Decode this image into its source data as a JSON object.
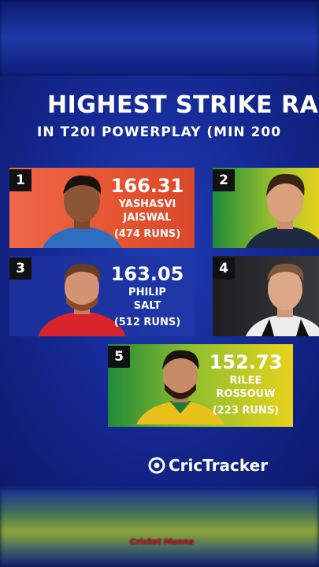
{
  "header": {
    "title": "HIGHEST STRIKE RA",
    "subtitle": "IN T20I POWERPLAY (MIN 200"
  },
  "cards": [
    {
      "rank": "1",
      "value": "166.31",
      "name_lines": [
        "YASHASVI",
        "JAISWAL"
      ],
      "runs": "(474 RUNS)"
    },
    {
      "rank": "2"
    },
    {
      "rank": "3",
      "value": "163.05",
      "name_lines": [
        "PHILIP",
        "SALT"
      ],
      "runs": "(512 RUNS)"
    },
    {
      "rank": "4"
    },
    {
      "rank": "5",
      "value": "152.73",
      "name_lines": [
        "RILEE",
        "ROSSOUW"
      ],
      "runs": "(223 RUNS)"
    }
  ],
  "footer": {
    "logo": "CricTracker",
    "watermark": "Cricket Munna"
  }
}
